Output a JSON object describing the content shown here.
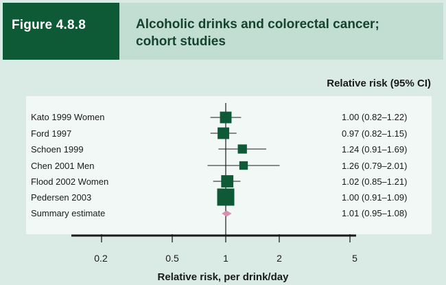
{
  "figure": {
    "label": "Figure 4.8.8",
    "title_line1": "Alcoholic drinks and colorectal cancer;",
    "title_line2": "cohort studies"
  },
  "chart_data": {
    "type": "forest",
    "column_header": "Relative risk (95% CI)",
    "xlabel": "Relative risk, per drink/day",
    "x_scale": "log",
    "xlim": [
      0.1,
      5
    ],
    "x_ticks": [
      0.2,
      0.5,
      1,
      2,
      5
    ],
    "x_tick_labels": [
      "0.2",
      "0.5",
      "1",
      "2",
      "5"
    ],
    "reference_line": 1,
    "studies": [
      {
        "label": "Kato 1999 Women",
        "rr": 1.0,
        "lo": 0.82,
        "hi": 1.22,
        "ci_text": "1.00 (0.82–1.22)",
        "weight": 0.55
      },
      {
        "label": "Ford 1997",
        "rr": 0.97,
        "lo": 0.82,
        "hi": 1.15,
        "ci_text": "0.97 (0.82–1.15)",
        "weight": 0.55
      },
      {
        "label": "Schoen 1999",
        "rr": 1.24,
        "lo": 0.91,
        "hi": 1.69,
        "ci_text": "1.24 (0.91–1.69)",
        "weight": 0.35
      },
      {
        "label": "Chen 2001 Men",
        "rr": 1.26,
        "lo": 0.79,
        "hi": 2.01,
        "ci_text": "1.26 (0.79–2.01)",
        "weight": 0.3
      },
      {
        "label": "Flood 2002 Women",
        "rr": 1.02,
        "lo": 0.85,
        "hi": 1.21,
        "ci_text": "1.02 (0.85–1.21)",
        "weight": 0.6
      },
      {
        "label": "Pedersen 2003",
        "rr": 1.0,
        "lo": 0.91,
        "hi": 1.09,
        "ci_text": "1.00 (0.91–1.09)",
        "weight": 1.0
      }
    ],
    "summary": {
      "label": "Summary estimate",
      "rr": 1.01,
      "lo": 0.95,
      "hi": 1.08,
      "ci_text": "1.01 (0.95–1.08)"
    },
    "colors": {
      "marker": "#0f5a36",
      "summary_diamond": "#d98fb0",
      "header_dark": "#0f5a36",
      "header_light": "#c2ddd2",
      "background": "#d9ebe4",
      "panel": "#f2f8f6"
    }
  }
}
